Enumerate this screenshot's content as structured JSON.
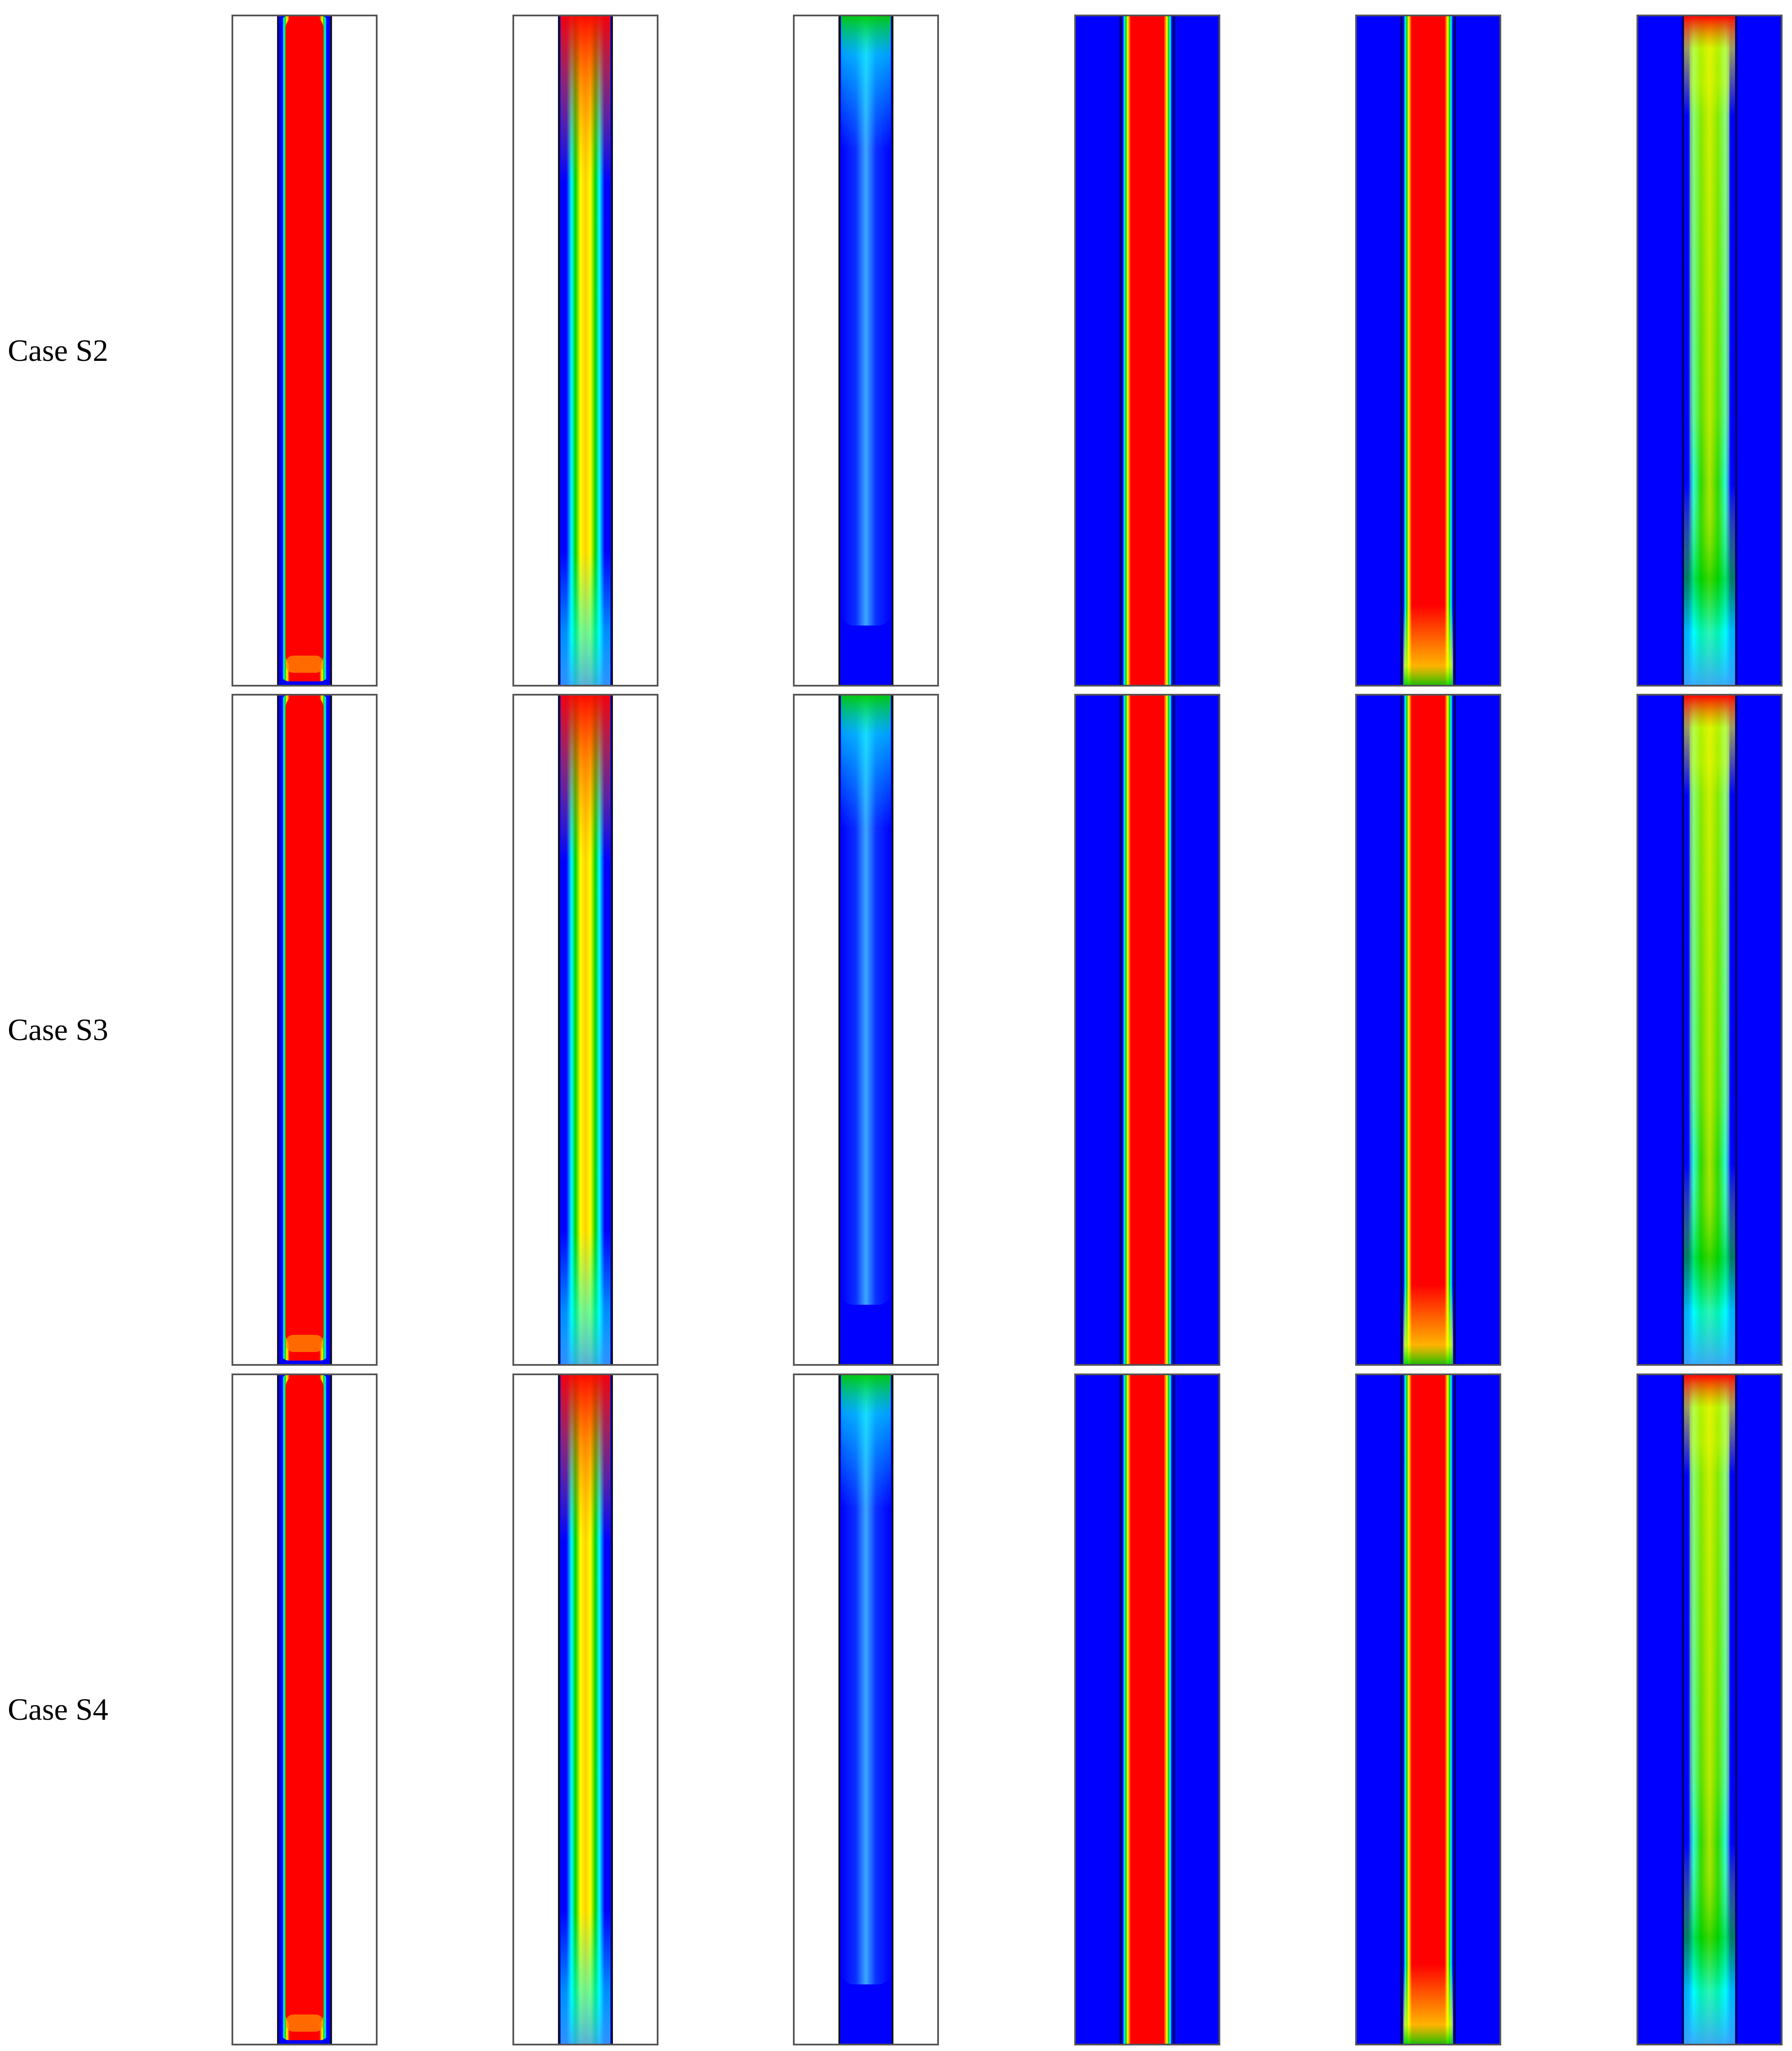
{
  "figure": {
    "rows": [
      {
        "label": "Case S2"
      },
      {
        "label": "Case S3"
      },
      {
        "label": "Case S4"
      }
    ],
    "columns": [
      {
        "style": "channel",
        "variant": "red-core"
      },
      {
        "style": "channel",
        "variant": "warm-plume"
      },
      {
        "style": "channel",
        "variant": "cool-plume"
      },
      {
        "style": "filled",
        "variant": "red-core"
      },
      {
        "style": "filled",
        "variant": "warm-plume"
      },
      {
        "style": "filled",
        "variant": "green-plume"
      }
    ],
    "colors": {
      "background": "#ffffff",
      "frame": "#555555",
      "deep_blue": "#0000ff",
      "light_blue": "#3aa8ff",
      "cyan": "#00ffff",
      "green": "#00d000",
      "yellow": "#ffff00",
      "orange": "#ff8c00",
      "red": "#ff0000"
    }
  }
}
